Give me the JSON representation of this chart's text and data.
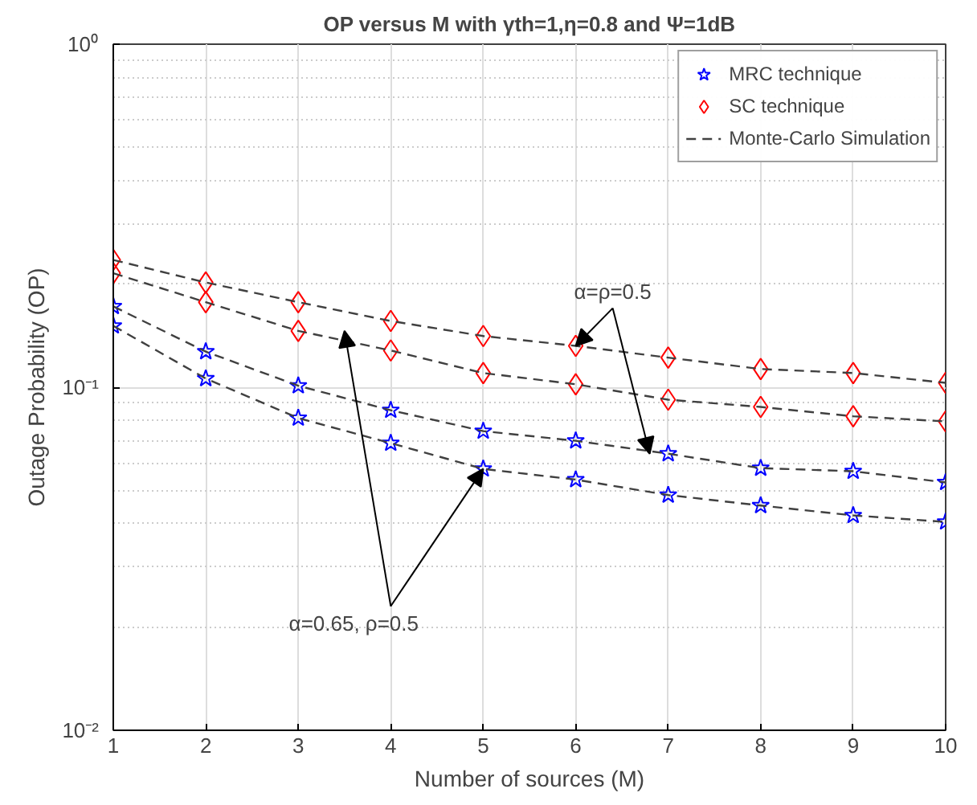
{
  "chart_data": {
    "type": "scatter",
    "title": "OP versus M with γth=1,η=0.8 and Ψ=1dB",
    "xlabel": "Number of sources (M)",
    "ylabel": "Outage Probability (OP)",
    "x": [
      1,
      2,
      3,
      4,
      5,
      6,
      7,
      8,
      9,
      10
    ],
    "series": [
      {
        "name": "MRC technique",
        "marker": "star",
        "color": "#0000ff",
        "values": [
          0.172,
          0.127,
          0.101,
          0.0857,
          0.0745,
          0.0698,
          0.064,
          0.0581,
          0.0569,
          0.0528
        ]
      },
      {
        "marker": "star",
        "color": "#0000ff",
        "values": [
          0.151,
          0.106,
          0.0813,
          0.0687,
          0.0578,
          0.0538,
          0.0485,
          0.0452,
          0.0423,
          0.0405
        ]
      },
      {
        "name": "SC technique",
        "marker": "diamond",
        "color": "#ff0000",
        "values": [
          0.235,
          0.202,
          0.177,
          0.156,
          0.141,
          0.132,
          0.122,
          0.113,
          0.11,
          0.103
        ]
      },
      {
        "marker": "diamond",
        "color": "#ff0000",
        "values": [
          0.215,
          0.177,
          0.146,
          0.128,
          0.11,
          0.102,
          0.092,
          0.0876,
          0.0823,
          0.0795
        ]
      },
      {
        "name": "Monte-Carlo Simulation",
        "type": "line",
        "line_style": "dashed",
        "color": "#404040",
        "values": [
          0.172,
          0.127,
          0.101,
          0.0857,
          0.0745,
          0.0698,
          0.064,
          0.0581,
          0.0569,
          0.0528
        ]
      },
      {
        "type": "line",
        "line_style": "dashed",
        "color": "#404040",
        "values": [
          0.151,
          0.106,
          0.0813,
          0.0687,
          0.0578,
          0.0538,
          0.0485,
          0.0452,
          0.0423,
          0.0405
        ]
      },
      {
        "type": "line",
        "line_style": "dashed",
        "color": "#404040",
        "values": [
          0.235,
          0.202,
          0.177,
          0.156,
          0.141,
          0.132,
          0.122,
          0.113,
          0.11,
          0.103
        ]
      },
      {
        "type": "line",
        "line_style": "dashed",
        "color": "#404040",
        "values": [
          0.215,
          0.177,
          0.146,
          0.128,
          0.11,
          0.102,
          0.092,
          0.0876,
          0.0823,
          0.0795
        ]
      }
    ],
    "annotations": [
      {
        "text": "α=ρ=0.5",
        "x": 6,
        "y": 0.132
      },
      {
        "text": "α=0.65, ρ=0.5",
        "x": 5,
        "y": 0.0578
      }
    ],
    "log": "y",
    "xlim": [
      1,
      10
    ],
    "xticks": [
      1,
      2,
      3,
      4,
      5,
      6,
      7,
      8,
      9,
      10
    ],
    "ylim": [
      0.01,
      1
    ],
    "yticks": [
      {
        "value": 0.01,
        "label": "10⁻²"
      },
      {
        "value": 0.1,
        "label": "10⁻¹"
      },
      {
        "value": 1,
        "label": "10⁰"
      }
    ],
    "grid": true,
    "legend": "top right"
  }
}
